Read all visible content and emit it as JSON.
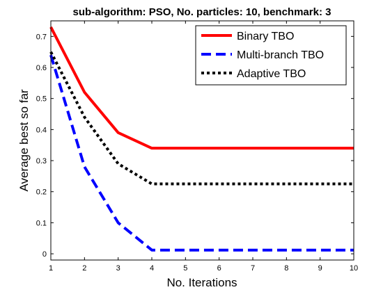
{
  "chart_data": {
    "type": "line",
    "title": "sub-algorithm: PSO, No. particles: 10, benchmark: 3",
    "xlabel": "No. Iterations",
    "ylabel": "Average best so far",
    "xlim": [
      1,
      10
    ],
    "ylim": [
      -0.02,
      0.75
    ],
    "x_ticks": [
      "1",
      "2",
      "3",
      "4",
      "5",
      "6",
      "7",
      "8",
      "9",
      "10"
    ],
    "y_ticks": [
      "0",
      "0.1",
      "0.2",
      "0.3",
      "0.4",
      "0.5",
      "0.6",
      "0.7"
    ],
    "x": [
      1,
      2,
      3,
      4,
      5,
      6,
      7,
      8,
      9,
      10
    ],
    "grid": false,
    "legend_position": "top-right",
    "series": [
      {
        "name": "Binary TBO",
        "color": "#ff0000",
        "style": "solid",
        "values": [
          0.73,
          0.52,
          0.39,
          0.34,
          0.34,
          0.34,
          0.34,
          0.34,
          0.34,
          0.34
        ]
      },
      {
        "name": "Multi-branch TBO",
        "color": "#0000ff",
        "style": "dashed",
        "values": [
          0.64,
          0.28,
          0.1,
          0.012,
          0.012,
          0.012,
          0.012,
          0.012,
          0.012,
          0.012
        ]
      },
      {
        "name": "Adaptive TBO",
        "color": "#000000",
        "style": "dotted",
        "values": [
          0.65,
          0.44,
          0.29,
          0.225,
          0.225,
          0.225,
          0.225,
          0.225,
          0.225,
          0.225
        ]
      }
    ]
  }
}
